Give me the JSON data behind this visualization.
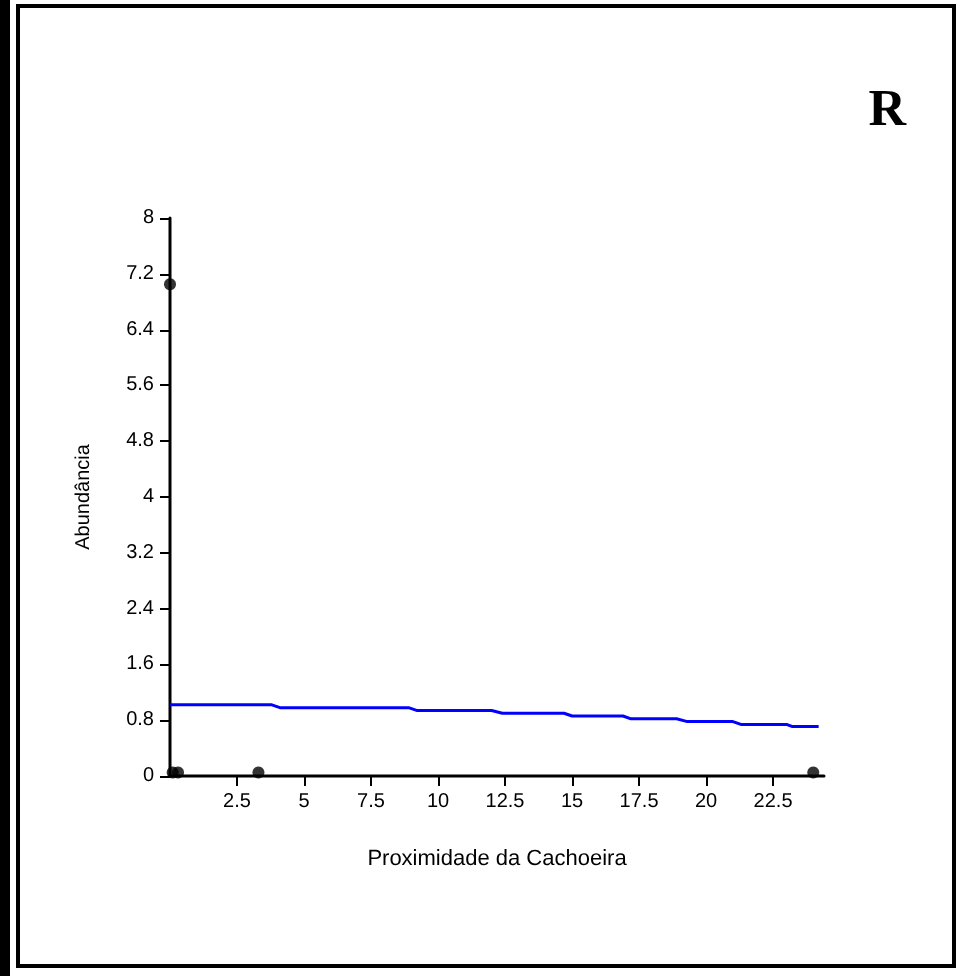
{
  "chart_data": {
    "type": "scatter",
    "title": "R",
    "xlabel": "Proximidade da Cachoeira",
    "ylabel": "Abundância",
    "xlim": [
      0,
      24.4
    ],
    "xticks": [
      2.5,
      5,
      7.5,
      10,
      12.5,
      15,
      17.5,
      20,
      22.5
    ],
    "ylim": [
      0,
      8
    ],
    "yticks": [
      0,
      0.8,
      1.6,
      2.4,
      3.2,
      4,
      4.8,
      5.6,
      6.4,
      7.2,
      8
    ],
    "grid": false,
    "marker": "circle",
    "series": [
      {
        "color": "#000000",
        "x": [
          0,
          0.1,
          0.3,
          3.3,
          24
        ],
        "values": [
          7.05,
          0.05,
          0.05,
          0.05,
          0.05
        ]
      },
      {
        "type": "line",
        "color": "#0000ff",
        "marker": "none",
        "line_style": "solid",
        "x": [
          0,
          3.8,
          4.1,
          8.9,
          9.2,
          12.0,
          12.4,
          14.7,
          15.0,
          16.9,
          17.2,
          18.9,
          19.3,
          21.0,
          21.3,
          23.0,
          23.2,
          24.2
        ],
        "values": [
          1.02,
          1.02,
          0.98,
          0.98,
          0.94,
          0.94,
          0.9,
          0.9,
          0.86,
          0.86,
          0.82,
          0.82,
          0.78,
          0.78,
          0.74,
          0.74,
          0.71,
          0.71
        ]
      }
    ]
  }
}
